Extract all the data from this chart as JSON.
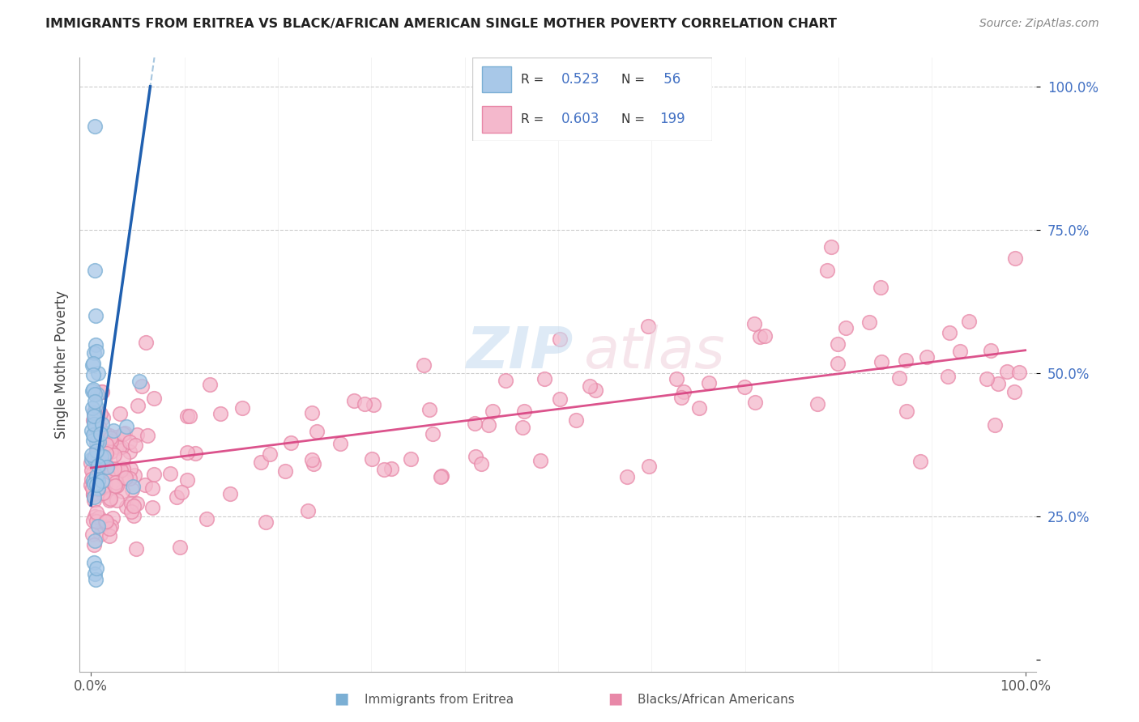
{
  "title": "IMMIGRANTS FROM ERITREA VS BLACK/AFRICAN AMERICAN SINGLE MOTHER POVERTY CORRELATION CHART",
  "source": "Source: ZipAtlas.com",
  "ylabel": "Single Mother Poverty",
  "legend_r1_label": "R = ",
  "legend_r1_val": "0.523",
  "legend_n1_label": "N = ",
  "legend_n1_val": " 56",
  "legend_r2_label": "R = ",
  "legend_r2_val": "0.603",
  "legend_n2_label": "N = ",
  "legend_n2_val": "199",
  "legend_text_color": "#333333",
  "legend_val_color": "#4472c4",
  "blue_scatter_color_face": "#a8c8e8",
  "blue_scatter_color_edge": "#7bafd4",
  "pink_scatter_color_face": "#f4b8cc",
  "pink_scatter_color_edge": "#e888a8",
  "blue_line_solid_color": "#2060b0",
  "blue_line_dash_color": "#90b8d8",
  "pink_line_color": "#d84080",
  "ytick_color": "#4472c4",
  "grid_color": "#cccccc",
  "watermark_zip_color": "#c8ddf0",
  "watermark_atlas_color": "#f0d0dc",
  "bottom_legend_blue_color": "#7bafd4",
  "bottom_legend_pink_color": "#e888a8",
  "blue_slope": 11.5,
  "blue_intercept": 0.27,
  "pink_slope": 0.205,
  "pink_intercept": 0.335,
  "background_color": "#ffffff"
}
